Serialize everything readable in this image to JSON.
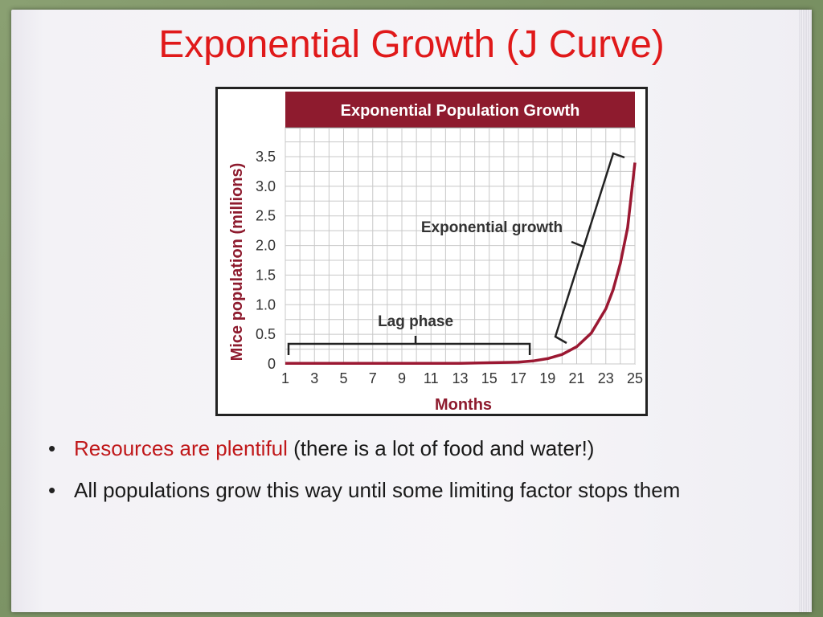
{
  "slide": {
    "title": "Exponential Growth (J Curve)",
    "bullets": [
      {
        "highlight": "Resources are plentiful",
        "rest": " (there is a lot of food and water!)"
      },
      {
        "highlight": "",
        "rest": "All populations grow this way until some limiting factor stops them"
      }
    ]
  },
  "colors": {
    "title": "#e0191a",
    "banner": "#8e1b2e",
    "curve": "#9b1832",
    "axis_label": "#8e1b2e"
  },
  "chart_data": {
    "type": "line",
    "title": "Exponential Population Growth",
    "xlabel": "Months",
    "ylabel": "Mice population (millions)",
    "xlim": [
      1,
      25
    ],
    "ylim": [
      0,
      3.5
    ],
    "x_ticks": [
      1,
      3,
      5,
      7,
      9,
      11,
      13,
      15,
      17,
      19,
      21,
      23,
      25
    ],
    "y_ticks": [
      "0",
      "0.5",
      "1.0",
      "1.5",
      "2.0",
      "2.5",
      "3.0",
      "3.5"
    ],
    "y_tick_values": [
      0,
      0.5,
      1.0,
      1.5,
      2.0,
      2.5,
      3.0,
      3.5
    ],
    "grid": true,
    "series": [
      {
        "name": "",
        "x": [
          1,
          3,
          5,
          7,
          9,
          11,
          13,
          15,
          17,
          18,
          19,
          20,
          21,
          22,
          23,
          23.5,
          24,
          24.5,
          25
        ],
        "y": [
          0.01,
          0.01,
          0.01,
          0.01,
          0.01,
          0.01,
          0.01,
          0.02,
          0.03,
          0.05,
          0.09,
          0.16,
          0.29,
          0.52,
          0.93,
          1.25,
          1.7,
          2.3,
          3.4
        ]
      }
    ],
    "annotations": [
      {
        "text": "Lag phase",
        "x_range": [
          1,
          18
        ]
      },
      {
        "text": "Exponential growth",
        "x_range": [
          19,
          25
        ]
      }
    ]
  }
}
